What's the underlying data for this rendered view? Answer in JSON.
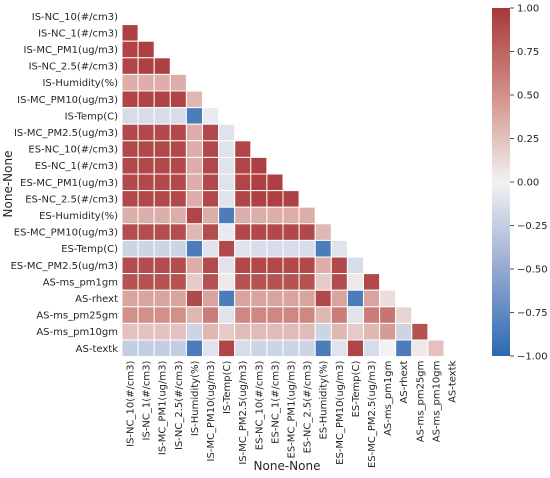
{
  "chart_data": {
    "type": "heatmap",
    "title": "",
    "xlabel": "None-None",
    "ylabel": "None-None",
    "variables": [
      "IS-NC_10(#/cm3)",
      "IS-NC_1(#/cm3)",
      "IS-MC_PM1(ug/m3)",
      "IS-NC_2.5(#/cm3)",
      "IS-Humidity(%)",
      "IS-MC_PM10(ug/m3)",
      "IS-Temp(C)",
      "IS-MC_PM2.5(ug/m3)",
      "ES-NC_10(#/cm3)",
      "ES-NC_1(#/cm3)",
      "ES-MC_PM1(ug/m3)",
      "ES-NC_2.5(#/cm3)",
      "ES-Humidity(%)",
      "ES-MC_PM10(ug/m3)",
      "ES-Temp(C)",
      "ES-MC_PM2.5(ug/m3)",
      "AS-ms_pm1gm",
      "AS-rhext",
      "AS-ms_pm25gm",
      "AS-ms_pm10gm",
      "AS-textk"
    ],
    "matrix": [
      [],
      [
        0.95
      ],
      [
        0.93,
        0.95
      ],
      [
        0.92,
        0.95,
        0.95
      ],
      [
        0.35,
        0.35,
        0.35,
        0.35
      ],
      [
        0.93,
        0.93,
        0.93,
        0.93,
        0.3
      ],
      [
        -0.15,
        -0.15,
        -0.15,
        -0.15,
        -0.85,
        -0.05
      ],
      [
        0.9,
        0.9,
        0.9,
        0.9,
        0.35,
        0.9,
        -0.1
      ],
      [
        0.9,
        0.9,
        0.9,
        0.9,
        0.35,
        0.9,
        -0.1,
        0.92
      ],
      [
        0.9,
        0.9,
        0.9,
        0.9,
        0.35,
        0.9,
        -0.1,
        0.92,
        0.95
      ],
      [
        0.9,
        0.9,
        0.9,
        0.9,
        0.35,
        0.9,
        -0.1,
        0.92,
        0.95,
        0.95
      ],
      [
        0.9,
        0.9,
        0.9,
        0.9,
        0.35,
        0.9,
        -0.1,
        0.92,
        0.95,
        0.95,
        0.95
      ],
      [
        0.35,
        0.35,
        0.35,
        0.35,
        0.92,
        0.35,
        -0.85,
        0.35,
        0.35,
        0.35,
        0.35,
        0.35
      ],
      [
        0.88,
        0.88,
        0.88,
        0.88,
        0.3,
        0.88,
        -0.05,
        0.9,
        0.9,
        0.9,
        0.9,
        0.9,
        0.3
      ],
      [
        -0.2,
        -0.2,
        -0.2,
        -0.2,
        -0.85,
        -0.1,
        0.9,
        -0.1,
        -0.15,
        -0.15,
        -0.15,
        -0.15,
        -0.85,
        -0.1
      ],
      [
        0.88,
        0.88,
        0.88,
        0.88,
        0.35,
        0.88,
        -0.1,
        0.9,
        0.9,
        0.9,
        0.9,
        0.9,
        0.35,
        0.9,
        -0.15
      ],
      [
        0.85,
        0.85,
        0.85,
        0.85,
        0.2,
        0.85,
        0.05,
        0.85,
        0.85,
        0.85,
        0.85,
        0.85,
        0.2,
        0.88,
        0.05,
        0.9
      ],
      [
        0.4,
        0.4,
        0.4,
        0.4,
        0.9,
        0.4,
        -0.85,
        0.4,
        0.4,
        0.4,
        0.4,
        0.4,
        0.9,
        0.4,
        -0.85,
        0.4,
        0.1
      ],
      [
        0.5,
        0.5,
        0.5,
        0.5,
        0.3,
        0.6,
        -0.1,
        0.55,
        0.55,
        0.55,
        0.55,
        0.55,
        0.3,
        0.6,
        -0.1,
        0.6,
        0.65,
        0.15
      ],
      [
        0.25,
        0.25,
        0.25,
        0.25,
        -0.2,
        0.3,
        0.2,
        0.28,
        0.28,
        0.28,
        0.28,
        0.28,
        -0.2,
        0.3,
        0.2,
        0.3,
        0.45,
        -0.2,
        0.85
      ],
      [
        -0.25,
        -0.25,
        -0.25,
        -0.25,
        -0.85,
        -0.1,
        0.92,
        -0.15,
        -0.2,
        -0.2,
        -0.2,
        -0.2,
        -0.85,
        -0.1,
        0.92,
        -0.15,
        0.0,
        -0.85,
        0.05,
        0.25
      ]
    ],
    "colorbar": {
      "colormap": "vlag",
      "range": [
        -1.0,
        1.0
      ],
      "ticks": [
        "1.00",
        "0.75",
        "0.50",
        "0.25",
        "0.00",
        "−0.25",
        "−0.50",
        "−0.75",
        "−1.00"
      ]
    },
    "mask": "upper-triangle-and-diagonal",
    "grid": false,
    "legend": "right"
  }
}
